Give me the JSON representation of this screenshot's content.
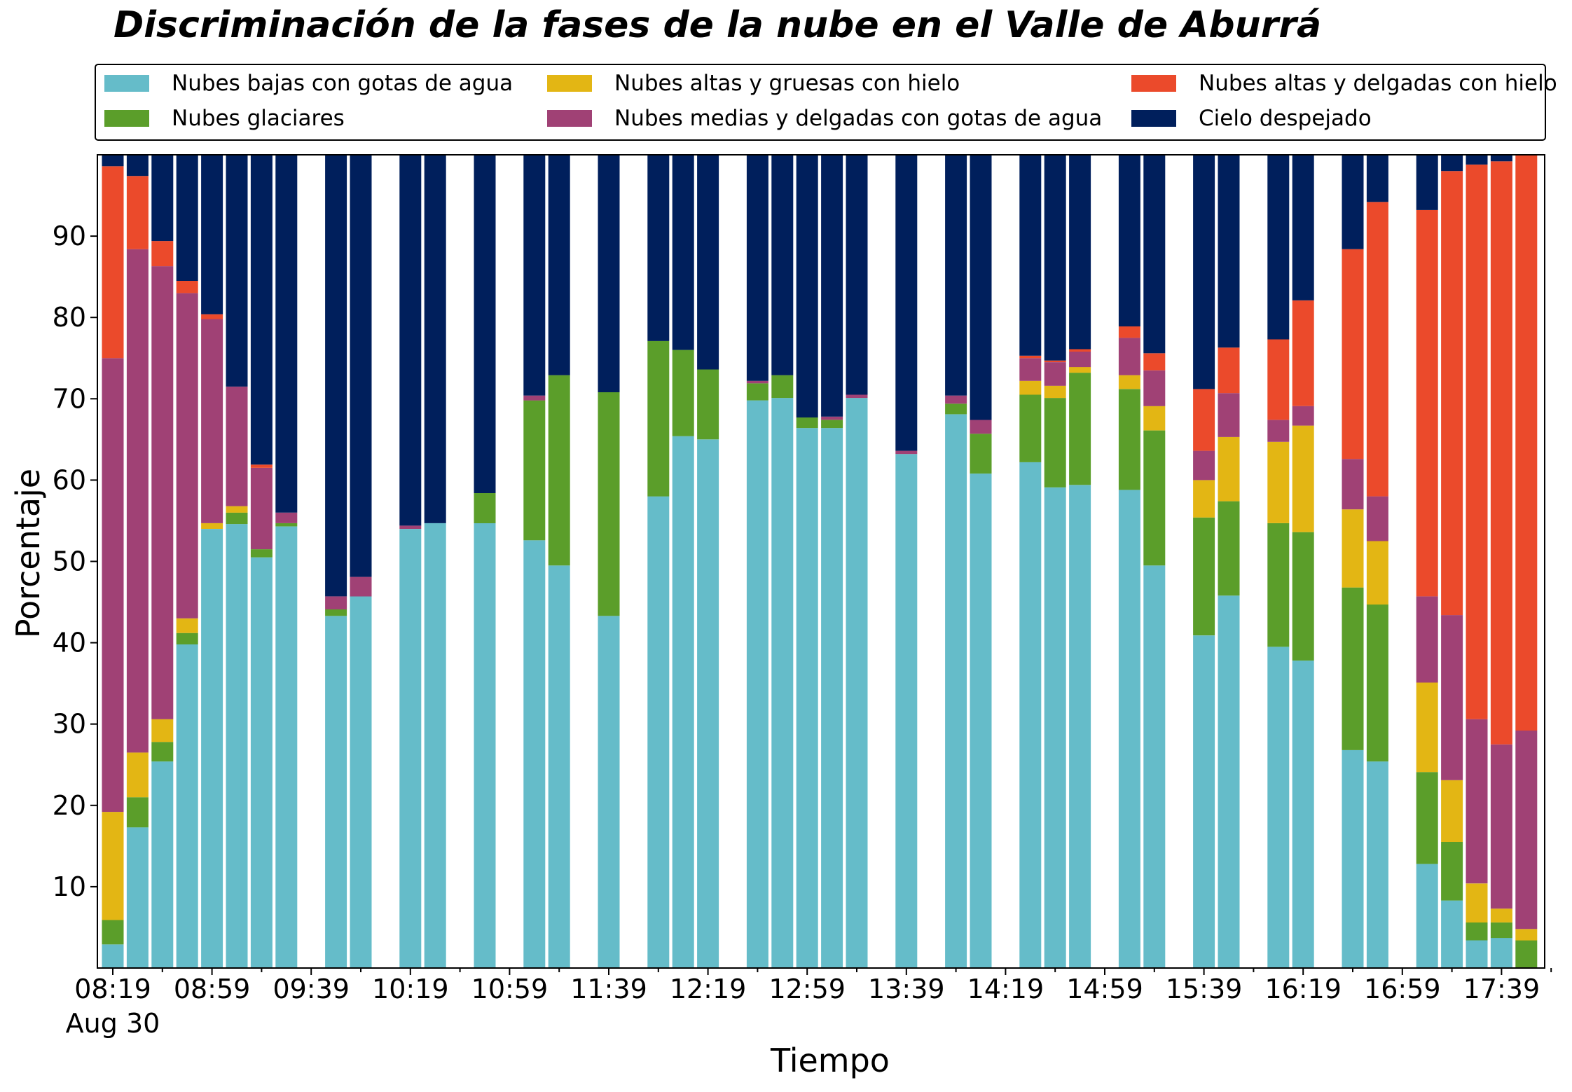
{
  "chart_data": {
    "type": "bar",
    "stacked": true,
    "title": "Discriminación de la fases de la nube en el Valle de Aburrá",
    "xlabel": "Tiempo",
    "ylabel": "Porcentaje",
    "ylim": [
      0,
      100
    ],
    "yticks": [
      10,
      20,
      30,
      40,
      50,
      60,
      70,
      80,
      90
    ],
    "xtick_labels": [
      "08:19",
      "08:59",
      "09:39",
      "10:19",
      "10:59",
      "11:39",
      "12:19",
      "12:59",
      "13:39",
      "14:19",
      "14:59",
      "15:39",
      "16:19",
      "16:59",
      "17:39"
    ],
    "xtick_sublabel": "Aug 30",
    "grid": false,
    "legend_position": "top",
    "colors": {
      "low_water": "#65bcc9",
      "glacial": "#5b9e2a",
      "high_thick_ice": "#e3b614",
      "mid_thin_water": "#a04175",
      "high_thin_ice": "#eb4a2b",
      "clear_sky": "#001f5c"
    },
    "series": [
      {
        "key": "low_water",
        "name": "Nubes bajas con gotas de agua"
      },
      {
        "key": "glacial",
        "name": "Nubes glaciares"
      },
      {
        "key": "high_thick_ice",
        "name": "Nubes altas y gruesas con hielo"
      },
      {
        "key": "mid_thin_water",
        "name": "Nubes medias y delgadas con gotas de agua"
      },
      {
        "key": "high_thin_ice",
        "name": "Nubes altas y delgadas con hielo"
      },
      {
        "key": "clear_sky",
        "name": "Cielo despejado"
      }
    ],
    "bars": [
      {
        "slot": 0,
        "values": [
          2.9,
          3.0,
          13.3,
          55.8,
          23.6,
          1.4
        ]
      },
      {
        "slot": 1,
        "values": [
          17.3,
          3.7,
          5.5,
          61.9,
          9.0,
          2.6
        ]
      },
      {
        "slot": 2,
        "values": [
          25.4,
          2.4,
          2.8,
          55.7,
          3.1,
          10.6
        ]
      },
      {
        "slot": 3,
        "values": [
          39.8,
          1.4,
          1.8,
          40.0,
          1.5,
          15.5
        ]
      },
      {
        "slot": 4,
        "values": [
          54.0,
          0.0,
          0.7,
          25.1,
          0.6,
          19.6
        ]
      },
      {
        "slot": 5,
        "values": [
          54.6,
          1.4,
          0.8,
          14.7,
          0.0,
          28.5
        ]
      },
      {
        "slot": 6,
        "values": [
          50.5,
          1.0,
          0.0,
          10.0,
          0.4,
          38.1
        ]
      },
      {
        "slot": 7,
        "values": [
          54.3,
          0.4,
          0.0,
          1.3,
          0.0,
          44.0
        ]
      },
      {
        "slot": 9,
        "values": [
          43.3,
          0.8,
          0.0,
          1.6,
          0.0,
          54.3
        ]
      },
      {
        "slot": 10,
        "values": [
          45.7,
          0.0,
          0.0,
          2.4,
          0.0,
          51.9
        ]
      },
      {
        "slot": 12,
        "values": [
          54.0,
          0.0,
          0.0,
          0.4,
          0.0,
          45.6
        ]
      },
      {
        "slot": 13,
        "values": [
          54.7,
          0.0,
          0.0,
          0.0,
          0.0,
          45.3
        ]
      },
      {
        "slot": 15,
        "values": [
          54.7,
          3.7,
          0.0,
          0.0,
          0.0,
          41.6
        ]
      },
      {
        "slot": 17,
        "values": [
          52.6,
          17.2,
          0.0,
          0.6,
          0.0,
          29.6
        ]
      },
      {
        "slot": 18,
        "values": [
          49.5,
          23.4,
          0.0,
          0.0,
          0.0,
          27.1
        ]
      },
      {
        "slot": 20,
        "values": [
          43.3,
          27.5,
          0.0,
          0.0,
          0.0,
          29.2
        ]
      },
      {
        "slot": 22,
        "values": [
          58.0,
          19.1,
          0.0,
          0.0,
          0.0,
          22.9
        ]
      },
      {
        "slot": 23,
        "values": [
          65.4,
          10.6,
          0.0,
          0.0,
          0.0,
          24.0
        ]
      },
      {
        "slot": 24,
        "values": [
          65.0,
          8.6,
          0.0,
          0.0,
          0.0,
          26.4
        ]
      },
      {
        "slot": 26,
        "values": [
          69.8,
          2.1,
          0.0,
          0.3,
          0.0,
          27.8
        ]
      },
      {
        "slot": 27,
        "values": [
          70.1,
          2.8,
          0.0,
          0.0,
          0.0,
          27.1
        ]
      },
      {
        "slot": 28,
        "values": [
          66.4,
          1.3,
          0.0,
          0.0,
          0.0,
          32.3
        ]
      },
      {
        "slot": 29,
        "values": [
          66.4,
          1.0,
          0.0,
          0.4,
          0.0,
          32.2
        ]
      },
      {
        "slot": 30,
        "values": [
          70.1,
          0.0,
          0.0,
          0.4,
          0.0,
          29.5
        ]
      },
      {
        "slot": 32,
        "values": [
          63.2,
          0.0,
          0.0,
          0.4,
          0.0,
          36.4
        ]
      },
      {
        "slot": 34,
        "values": [
          68.1,
          1.3,
          0.0,
          1.0,
          0.0,
          29.6
        ]
      },
      {
        "slot": 35,
        "values": [
          60.8,
          4.9,
          0.0,
          1.7,
          0.0,
          32.6
        ]
      },
      {
        "slot": 37,
        "values": [
          62.2,
          8.3,
          1.7,
          2.8,
          0.3,
          24.7
        ]
      },
      {
        "slot": 38,
        "values": [
          59.1,
          11.0,
          1.5,
          2.9,
          0.2,
          25.3
        ]
      },
      {
        "slot": 39,
        "values": [
          59.4,
          13.8,
          0.7,
          1.9,
          0.3,
          23.9
        ]
      },
      {
        "slot": 41,
        "values": [
          58.8,
          12.4,
          1.7,
          4.6,
          1.4,
          21.1
        ]
      },
      {
        "slot": 42,
        "values": [
          49.5,
          16.6,
          3.0,
          4.4,
          2.1,
          24.4
        ]
      },
      {
        "slot": 44,
        "values": [
          40.9,
          14.5,
          4.6,
          3.6,
          7.6,
          28.8
        ]
      },
      {
        "slot": 45,
        "values": [
          45.8,
          11.6,
          7.9,
          5.4,
          5.6,
          23.7
        ]
      },
      {
        "slot": 47,
        "values": [
          39.5,
          15.2,
          10.0,
          2.7,
          9.9,
          22.7
        ]
      },
      {
        "slot": 48,
        "values": [
          37.8,
          15.8,
          13.1,
          2.4,
          13.0,
          17.9
        ]
      },
      {
        "slot": 50,
        "values": [
          26.8,
          20.0,
          9.6,
          6.2,
          25.8,
          11.6
        ]
      },
      {
        "slot": 51,
        "values": [
          25.4,
          19.3,
          7.8,
          5.5,
          36.2,
          5.8
        ]
      },
      {
        "slot": 53,
        "values": [
          12.8,
          11.3,
          11.0,
          10.6,
          47.5,
          6.8
        ]
      },
      {
        "slot": 54,
        "values": [
          8.3,
          7.2,
          7.6,
          20.3,
          54.6,
          2.0
        ]
      },
      {
        "slot": 55,
        "values": [
          3.4,
          2.2,
          4.8,
          20.2,
          68.2,
          1.2
        ]
      },
      {
        "slot": 56,
        "values": [
          3.7,
          1.9,
          1.7,
          20.2,
          71.7,
          0.8
        ]
      },
      {
        "slot": 57,
        "values": [
          0.0,
          3.4,
          1.4,
          24.4,
          70.8,
          0.0
        ]
      }
    ]
  }
}
